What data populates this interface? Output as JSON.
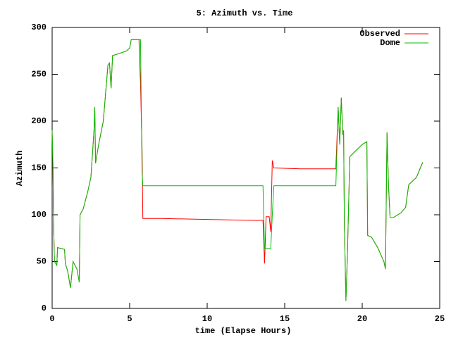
{
  "chart_data": {
    "type": "line",
    "title": "5: Azimuth vs. Time",
    "xlabel": "time (Elapse Hours)",
    "ylabel": "Azimuth",
    "x": [
      0,
      0.05,
      0.1,
      0.15,
      0.3,
      0.35,
      0.8,
      0.85,
      1.0,
      1.18,
      1.35,
      1.6,
      1.75,
      1.8,
      2.0,
      2.3,
      2.5,
      2.7,
      2.75,
      2.8,
      3.0,
      3.3,
      3.5,
      3.6,
      3.7,
      3.8,
      3.9,
      4.3,
      4.8,
      5.0,
      5.1,
      5.6,
      5.7,
      5.8,
      5.85,
      7.0,
      10.0,
      13.0,
      13.6,
      13.7,
      13.8,
      14.0,
      14.1,
      14.2,
      14.3,
      16.0,
      18.3,
      18.45,
      18.55,
      18.65,
      18.75,
      18.8,
      18.85,
      18.95,
      19.05,
      19.2,
      19.5,
      20.0,
      20.3,
      20.35,
      20.6,
      21.0,
      21.4,
      21.5,
      21.6,
      21.7,
      21.8,
      22.0,
      22.5,
      22.8,
      23.0,
      23.5,
      23.9
    ],
    "series": [
      {
        "name": "Observed",
        "color": "#ff0000",
        "values": [
          190,
          155,
          85,
          50,
          46,
          65,
          63,
          48,
          40,
          22,
          50,
          42,
          28,
          100,
          106,
          125,
          140,
          190,
          215,
          155,
          175,
          200,
          240,
          260,
          262,
          235,
          270,
          272,
          275,
          278,
          287,
          287,
          240,
          170,
          96,
          96,
          95,
          94,
          94,
          48,
          98,
          98,
          82,
          158,
          150,
          149,
          149,
          215,
          175,
          225,
          185,
          190,
          90,
          8,
          60,
          162,
          167,
          175,
          178,
          78,
          76,
          65,
          50,
          42,
          188,
          130,
          97,
          97,
          102,
          108,
          132,
          140,
          156
        ]
      },
      {
        "name": "Dome",
        "color": "#00c000",
        "values": [
          190,
          155,
          85,
          50,
          46,
          65,
          63,
          48,
          40,
          22,
          50,
          42,
          28,
          100,
          106,
          125,
          140,
          190,
          215,
          155,
          175,
          200,
          240,
          260,
          262,
          235,
          270,
          272,
          275,
          278,
          287,
          287,
          287,
          145,
          131,
          131,
          131,
          131,
          131,
          64,
          64,
          64,
          64,
          100,
          131,
          131,
          131,
          215,
          175,
          225,
          185,
          190,
          90,
          8,
          60,
          162,
          167,
          175,
          178,
          78,
          76,
          65,
          50,
          42,
          188,
          130,
          97,
          97,
          102,
          108,
          132,
          140,
          156
        ]
      }
    ],
    "xlim": [
      0,
      25
    ],
    "xticks": [
      0,
      5,
      10,
      15,
      20,
      25
    ],
    "ylim": [
      0,
      300
    ],
    "yticks": [
      0,
      50,
      100,
      150,
      200,
      250,
      300
    ],
    "legend": "upper-right"
  }
}
